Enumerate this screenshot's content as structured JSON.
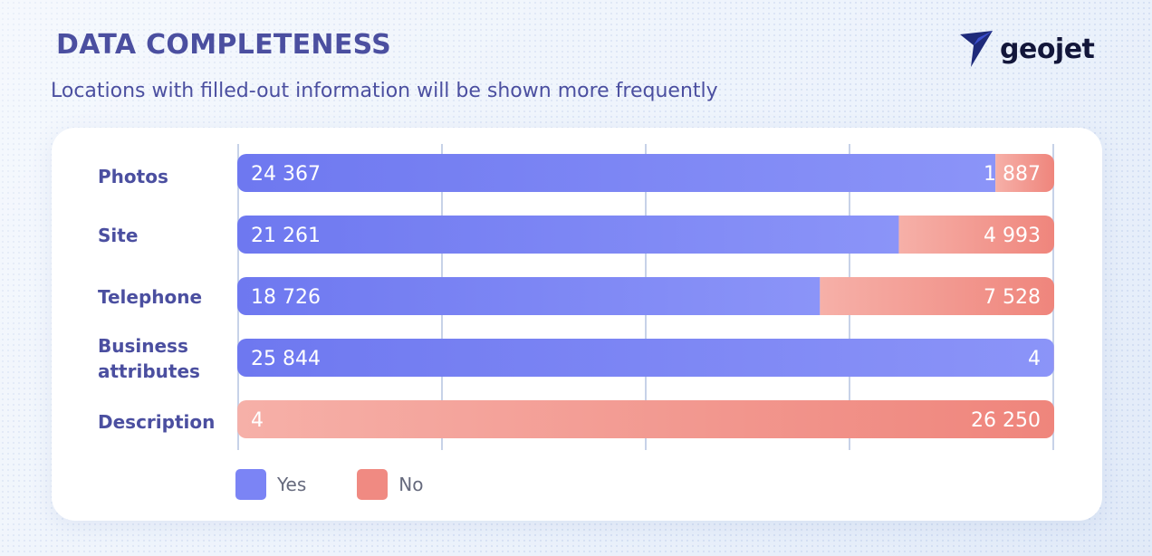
{
  "header": {
    "title": "DATA COMPLETENESS",
    "subtitle": "Locations with filled-out information will be shown more frequently"
  },
  "logo": {
    "text": "geojet",
    "icon": "geojet-arrow-icon",
    "color": "#1e2a7a"
  },
  "colors": {
    "yes_start": "#6e78f0",
    "yes_end": "#8b94f8",
    "no_start": "#f6b0a8",
    "no_end": "#ef857c",
    "grid": "#c7d2e8",
    "label": "#4b4fa0"
  },
  "chart_data": {
    "type": "bar",
    "orientation": "horizontal",
    "stacked": "100%",
    "categories": [
      "Photos",
      "Site",
      "Telephone",
      "Business attributes",
      "Description"
    ],
    "series": [
      {
        "name": "Yes",
        "values": [
          24367,
          21261,
          18726,
          25844,
          4
        ],
        "labels": [
          "24 367",
          "21 261",
          "18 726",
          "25 844",
          "4"
        ]
      },
      {
        "name": "No",
        "values": [
          1887,
          4993,
          7528,
          4,
          26250
        ],
        "labels": [
          "1 887",
          "4 993",
          "7 528",
          "4",
          "26 250"
        ]
      }
    ],
    "grid": true,
    "legend": "bottom-left"
  }
}
